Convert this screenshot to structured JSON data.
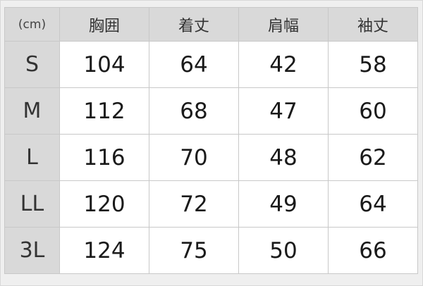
{
  "table": {
    "unit": "(cm)",
    "headers": [
      "胸囲",
      "着丈",
      "肩幅",
      "袖丈"
    ],
    "rows": [
      {
        "size": "S",
        "values": [
          "104",
          "64",
          "42",
          "58"
        ]
      },
      {
        "size": "M",
        "values": [
          "112",
          "68",
          "47",
          "60"
        ]
      },
      {
        "size": "L",
        "values": [
          "116",
          "70",
          "48",
          "62"
        ]
      },
      {
        "size": "LL",
        "values": [
          "120",
          "72",
          "49",
          "64"
        ]
      },
      {
        "size": "3L",
        "values": [
          "124",
          "75",
          "50",
          "66"
        ]
      }
    ]
  }
}
